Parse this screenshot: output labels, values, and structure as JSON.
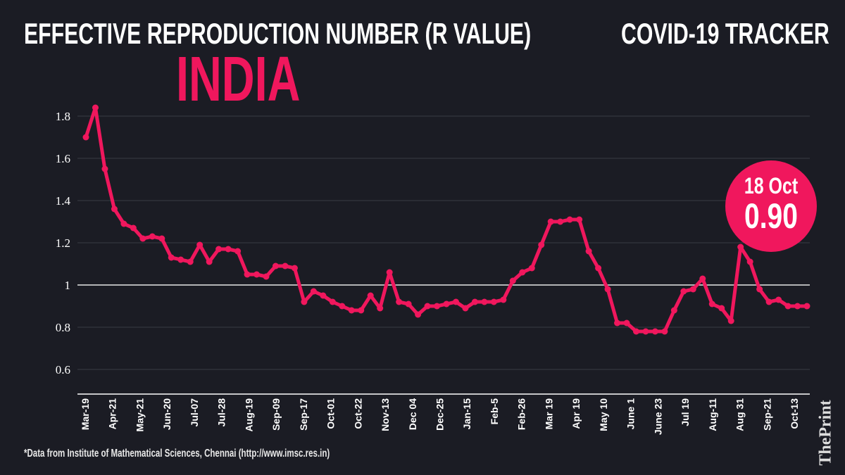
{
  "header": {
    "title": "EFFECTIVE REPRODUCTION NUMBER (R VALUE)",
    "tracker": "COVID-19 TRACKER",
    "country": "INDIA"
  },
  "badge": {
    "date": "18 Oct",
    "value": "0.90"
  },
  "footer": {
    "source": "*Data from Institute of Mathematical Sciences, Chennai (http://www.imsc.res.in)",
    "logo": "ThePrint"
  },
  "colors": {
    "background": "#1b1c24",
    "line": "#f0175d",
    "grid": "#3a3b44",
    "reference_line": "#e6e6e6"
  },
  "chart_data": {
    "type": "line",
    "title": "EFFECTIVE REPRODUCTION NUMBER (R VALUE)",
    "xlabel": "",
    "ylabel": "",
    "ylim": [
      0.5,
      1.85
    ],
    "yticks": [
      0.6,
      0.8,
      1,
      1.2,
      1.4,
      1.6,
      1.8
    ],
    "ytick_labels": [
      "0.6",
      "0.8",
      "1",
      "1.2",
      "1.4",
      "1.6",
      "1.8"
    ],
    "reference_line": 1,
    "grid": true,
    "xtick_labels": [
      "Mar-19",
      "Apr-21",
      "May-21",
      "Jun-20",
      "Jul-07",
      "Jul-28",
      "Aug-19",
      "Sep-09",
      "Sep-17",
      "Oct-01",
      "Oct-22",
      "Nov-13",
      "Dec 04",
      "Dec-25",
      "Jan-15",
      "Feb-5",
      "Feb-26",
      "Mar 19",
      "Apr 19",
      "May 10",
      "June 1",
      "June 23",
      "Jul 19",
      "Aug-11",
      "Aug 31",
      "Sep-21",
      "Oct-13"
    ],
    "values": [
      1.7,
      1.84,
      1.55,
      1.36,
      1.29,
      1.27,
      1.22,
      1.23,
      1.22,
      1.13,
      1.12,
      1.11,
      1.19,
      1.11,
      1.17,
      1.17,
      1.16,
      1.05,
      1.05,
      1.04,
      1.09,
      1.09,
      1.08,
      0.92,
      0.97,
      0.95,
      0.92,
      0.9,
      0.88,
      0.88,
      0.95,
      0.89,
      1.06,
      0.92,
      0.91,
      0.86,
      0.9,
      0.9,
      0.91,
      0.92,
      0.89,
      0.92,
      0.92,
      0.92,
      0.93,
      1.02,
      1.06,
      1.08,
      1.19,
      1.3,
      1.3,
      1.31,
      1.31,
      1.16,
      1.08,
      0.98,
      0.82,
      0.82,
      0.78,
      0.78,
      0.78,
      0.78,
      0.88,
      0.97,
      0.98,
      1.03,
      0.91,
      0.89,
      0.83,
      1.18,
      1.11,
      0.98,
      0.92,
      0.93,
      0.9,
      0.9,
      0.9
    ],
    "annotation": "18 Oct 0.90"
  }
}
